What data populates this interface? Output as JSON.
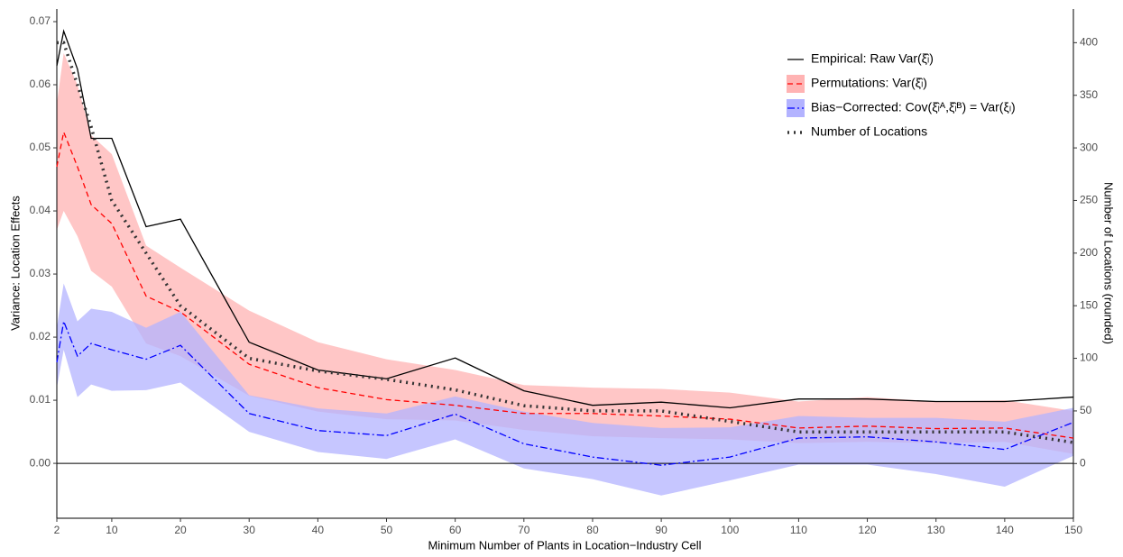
{
  "chart_data": {
    "type": "line",
    "x_label": "Minimum Number of Plants in Location−Industry Cell",
    "y_label": "Variance: Location Effects",
    "y2_label": "Number of Locations (rounded)",
    "x": [
      2,
      3,
      5,
      7,
      10,
      15,
      20,
      30,
      40,
      50,
      60,
      70,
      80,
      90,
      100,
      110,
      120,
      130,
      140,
      150
    ],
    "xlim": [
      2,
      150
    ],
    "xticks": [
      2,
      10,
      20,
      30,
      40,
      50,
      60,
      70,
      80,
      90,
      100,
      110,
      120,
      130,
      140,
      150
    ],
    "ylim": [
      -0.0087,
      0.072
    ],
    "yticks": [
      {
        "value": 0,
        "label": "0.00"
      },
      0.01,
      0.02,
      0.03,
      0.04,
      0.05,
      0.06,
      0.07
    ],
    "y2lim": [
      -52,
      432
    ],
    "y2ticks": [
      0,
      50,
      100,
      150,
      200,
      250,
      300,
      350,
      400
    ],
    "hline": 0,
    "legend": "top-right",
    "series": [
      {
        "name": "Empirical: Raw Var(ξ̂ₗ)",
        "color": "#000000",
        "style": "solid",
        "values": [
          0.063,
          0.0685,
          0.0625,
          0.0515,
          0.0515,
          0.0375,
          0.0387,
          0.0192,
          0.0148,
          0.0134,
          0.0167,
          0.0115,
          0.0092,
          0.0097,
          0.0088,
          0.0102,
          0.0102,
          0.0098,
          0.0098,
          0.0105
        ]
      },
      {
        "name": "Permutations: Var(ξ̂ₗ)",
        "color": "#ff0000",
        "band_color": "#ffb3b3",
        "style": "dashed",
        "values": [
          0.047,
          0.0525,
          0.047,
          0.041,
          0.038,
          0.0265,
          0.024,
          0.0157,
          0.012,
          0.0101,
          0.0092,
          0.0079,
          0.0079,
          0.0075,
          0.007,
          0.0056,
          0.0059,
          0.0055,
          0.0056,
          0.004
        ],
        "lower": [
          0.037,
          0.04,
          0.036,
          0.0305,
          0.028,
          0.019,
          0.017,
          0.0107,
          0.0082,
          0.007,
          0.0068,
          0.0053,
          0.0043,
          0.004,
          0.0038,
          0.0032,
          0.0034,
          0.0032,
          0.0034,
          0.0015
        ],
        "upper": [
          0.057,
          0.065,
          0.06,
          0.052,
          0.049,
          0.0345,
          0.031,
          0.0242,
          0.0192,
          0.0165,
          0.0148,
          0.0124,
          0.012,
          0.0118,
          0.0112,
          0.0098,
          0.0105,
          0.0098,
          0.01,
          0.0083
        ]
      },
      {
        "name": "Bias−Corrected: Cov(ξ̂ₗᴬ,ξ̂ₗᴮ) = Var(ξₗ)",
        "color": "#0000ff",
        "band_color": "#b3b3ff",
        "style": "dashdot",
        "values": [
          0.016,
          0.0225,
          0.017,
          0.019,
          0.018,
          0.0165,
          0.0187,
          0.0079,
          0.0052,
          0.0044,
          0.0078,
          0.0031,
          0.001,
          -0.0003,
          0.001,
          0.004,
          0.0042,
          0.0034,
          0.0022,
          0.0065
        ],
        "lower": [
          0.012,
          0.018,
          0.0105,
          0.0125,
          0.0115,
          0.0116,
          0.0128,
          0.005,
          0.0018,
          0.0007,
          0.0038,
          -0.0008,
          -0.0025,
          -0.0051,
          -0.0027,
          -0.0002,
          -0.0002,
          -0.0017,
          -0.0037,
          0.0012
        ],
        "upper": [
          0.0215,
          0.0285,
          0.0225,
          0.0245,
          0.024,
          0.0215,
          0.024,
          0.0108,
          0.0087,
          0.0079,
          0.0106,
          0.0082,
          0.0064,
          0.0056,
          0.0057,
          0.0075,
          0.0072,
          0.0072,
          0.0066,
          0.0088
        ]
      },
      {
        "name": "Number of Locations",
        "color": "#333333",
        "style": "dotted",
        "axis": "y2",
        "values": [
          400,
          400,
          360,
          320,
          250,
          200,
          150,
          100,
          88,
          80,
          70,
          55,
          50,
          50,
          40,
          30,
          30,
          30,
          30,
          20
        ]
      }
    ]
  }
}
